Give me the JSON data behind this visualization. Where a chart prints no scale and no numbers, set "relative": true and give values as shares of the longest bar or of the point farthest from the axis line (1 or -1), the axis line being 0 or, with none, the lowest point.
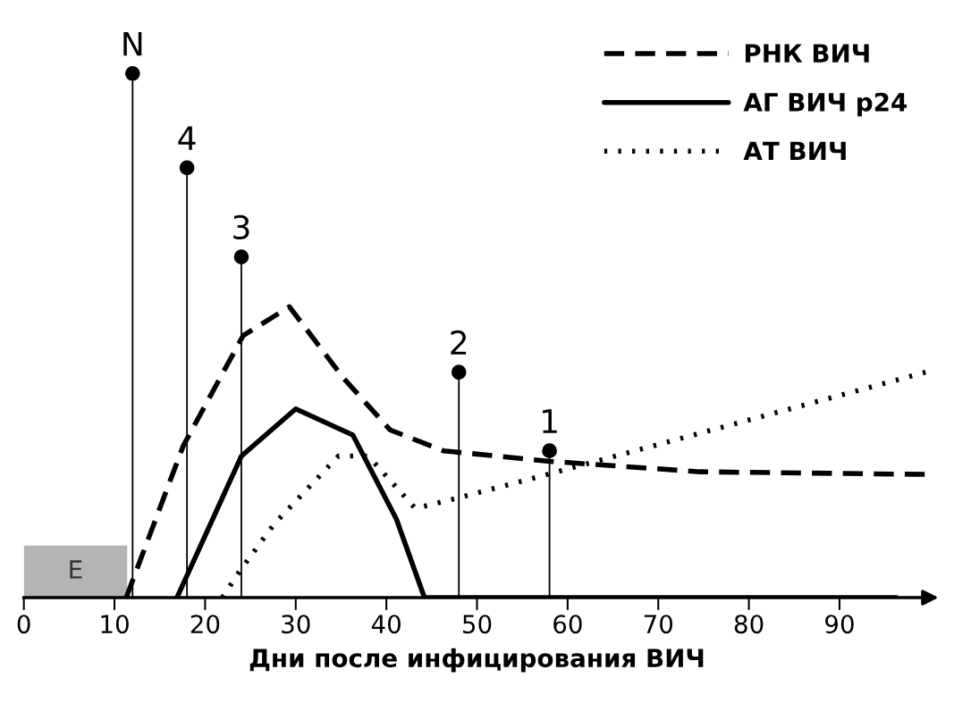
{
  "chart_data": {
    "type": "line",
    "relative": true,
    "xlabel": "Дни после инфицирования ВИЧ",
    "xlim": [
      0,
      100
    ],
    "xticks": [
      0,
      10,
      20,
      30,
      40,
      50,
      60,
      70,
      80,
      90
    ],
    "tick_labels": "x",
    "grid": false,
    "legend": "top right",
    "bands": [
      {
        "axis": "x",
        "from": 0,
        "to": 11.4,
        "label": "E",
        "color": "#b4b4b4"
      }
    ],
    "series": [
      {
        "name": "РНК ВИЧ",
        "color": "#000000",
        "line_style": "dashed",
        "x": [
          11.3,
          17.6,
          24.2,
          29.3,
          35.2,
          40.4,
          46.3,
          58,
          74.6,
          99.4
        ],
        "values": [
          0,
          0.29,
          0.5,
          0.555,
          0.42,
          0.32,
          0.28,
          0.26,
          0.24,
          0.235
        ]
      },
      {
        "name": "АГ ВИЧ p24",
        "color": "#000000",
        "line_style": "solid",
        "x": [
          16.9,
          24,
          30,
          36.3,
          41.1,
          44.2,
          96.3
        ],
        "values": [
          0,
          0.27,
          0.36,
          0.31,
          0.15,
          0,
          0
        ]
      },
      {
        "name": "АТ ВИЧ",
        "color": "#000000",
        "line_style": "dotted",
        "x": [
          21.9,
          23.8,
          27.6,
          34.7,
          38,
          43.2,
          47.9,
          57.8,
          99.5
        ],
        "values": [
          0,
          0.05,
          0.14,
          0.27,
          0.27,
          0.17,
          0.19,
          0.235,
          0.43
        ]
      },
      {
        "type": "lollipop",
        "color": "#000000",
        "marker": "circle",
        "x": [
          12,
          18,
          24,
          48,
          58
        ],
        "values": [
          1,
          0.82,
          0.65,
          0.43,
          0.28
        ]
      }
    ],
    "annotations": [
      {
        "text": "N",
        "x": 12,
        "y": 1
      },
      {
        "text": "4",
        "x": 18,
        "y": 0.82
      },
      {
        "text": "3",
        "x": 24,
        "y": 0.65
      },
      {
        "text": "2",
        "x": 48,
        "y": 0.43
      },
      {
        "text": "1",
        "x": 58,
        "y": 0.28
      }
    ]
  }
}
